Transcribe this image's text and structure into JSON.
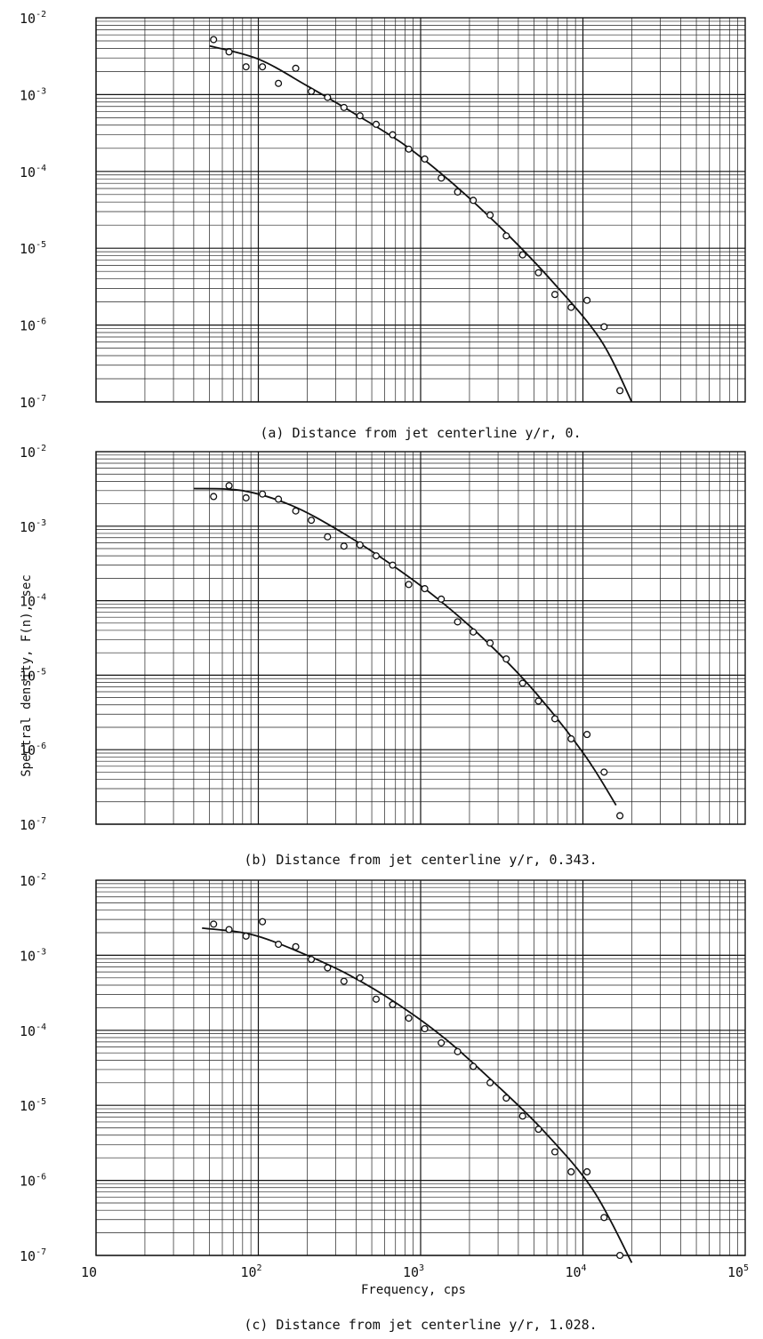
{
  "chart_data": [
    {
      "type": "scatter",
      "panel": "a",
      "caption": "(a) Distance from jet centerline  y/r, 0.",
      "x_scale": "log",
      "y_scale": "log",
      "xlim": [
        10,
        100000
      ],
      "ylim": [
        1e-07,
        0.01
      ],
      "grid": true,
      "points": {
        "x": [
          53,
          66,
          84,
          106,
          133,
          170,
          212,
          267,
          337,
          423,
          532,
          672,
          845,
          1060,
          1340,
          1690,
          2110,
          2680,
          3370,
          4250,
          5320,
          6720,
          8460,
          10600,
          13500,
          16900
        ],
        "y": [
          0.0052,
          0.0036,
          0.0023,
          0.0023,
          0.0014,
          0.0022,
          0.0011,
          0.00092,
          0.00068,
          0.00053,
          0.00041,
          0.0003,
          0.000195,
          0.000145,
          8.2e-05,
          5.4e-05,
          4.2e-05,
          2.7e-05,
          1.45e-05,
          8.2e-06,
          4.8e-06,
          2.5e-06,
          1.7e-06,
          2.1e-06,
          9.5e-07,
          1.4e-07
        ]
      },
      "fit_curve": {
        "x": [
          50,
          100,
          200,
          400,
          800,
          1600,
          3200,
          6400,
          12800,
          20000
        ],
        "y": [
          0.0043,
          0.0029,
          0.0013,
          0.00055,
          0.00022,
          6.8e-05,
          1.75e-05,
          3.8e-06,
          6.5e-07,
          1e-07
        ]
      }
    },
    {
      "type": "scatter",
      "panel": "b",
      "caption": "(b) Distance from jet centerline  y/r, 0.343.",
      "x_scale": "log",
      "y_scale": "log",
      "xlim": [
        10,
        100000
      ],
      "ylim": [
        1e-07,
        0.01
      ],
      "grid": true,
      "points": {
        "x": [
          53,
          66,
          84,
          106,
          133,
          170,
          212,
          267,
          337,
          423,
          532,
          672,
          845,
          1060,
          1340,
          1690,
          2110,
          2680,
          3370,
          4250,
          5320,
          6720,
          8460,
          10600,
          13500,
          16900
        ],
        "y": [
          0.0025,
          0.0035,
          0.0024,
          0.0027,
          0.0023,
          0.0016,
          0.0012,
          0.00072,
          0.00054,
          0.00056,
          0.0004,
          0.0003,
          0.000165,
          0.000145,
          0.000105,
          5.2e-05,
          3.8e-05,
          2.7e-05,
          1.65e-05,
          7.8e-06,
          4.5e-06,
          2.6e-06,
          1.4e-06,
          1.6e-06,
          5e-07,
          1.3e-07
        ]
      },
      "fit_curve": {
        "x": [
          40,
          80,
          160,
          320,
          640,
          1280,
          2560,
          5120,
          10240,
          16000
        ],
        "y": [
          0.0032,
          0.003,
          0.0019,
          0.00085,
          0.00032,
          0.000105,
          2.8e-05,
          5.8e-06,
          8.5e-07,
          1.8e-07
        ]
      }
    },
    {
      "type": "scatter",
      "panel": "c",
      "caption": "(c) Distance from jet centerline  y/r, 1.028.",
      "x_scale": "log",
      "y_scale": "log",
      "xlim": [
        10,
        100000
      ],
      "ylim": [
        1e-07,
        0.01
      ],
      "xlabel": "Frequency, cps",
      "grid": true,
      "points": {
        "x": [
          53,
          66,
          84,
          106,
          133,
          170,
          212,
          267,
          337,
          423,
          532,
          672,
          845,
          1060,
          1340,
          1690,
          2110,
          2680,
          3370,
          4250,
          5320,
          6720,
          8460,
          10600,
          13500,
          16900
        ],
        "y": [
          0.0026,
          0.0022,
          0.0018,
          0.0028,
          0.0014,
          0.0013,
          0.00088,
          0.00068,
          0.00045,
          0.0005,
          0.00026,
          0.00022,
          0.000145,
          0.000105,
          6.8e-05,
          5.2e-05,
          3.3e-05,
          2e-05,
          1.25e-05,
          7.2e-06,
          4.8e-06,
          2.4e-06,
          1.3e-06,
          1.3e-06,
          3.2e-07,
          1e-07
        ]
      },
      "fit_curve": {
        "x": [
          45,
          90,
          180,
          360,
          720,
          1440,
          2880,
          5760,
          11520,
          20000
        ],
        "y": [
          0.0023,
          0.0019,
          0.0011,
          0.00055,
          0.000225,
          7.5e-05,
          1.95e-05,
          4.5e-06,
          7.5e-07,
          8e-08
        ]
      }
    }
  ],
  "ylabel": "Spectral density, F(n), sec",
  "y_ticks": [
    {
      "base": "10",
      "exp": "-2",
      "value": 0.01
    },
    {
      "base": "10",
      "exp": "-3",
      "value": 0.001
    },
    {
      "base": "10",
      "exp": "-4",
      "value": 0.0001
    },
    {
      "base": "10",
      "exp": "-5",
      "value": 1e-05
    },
    {
      "base": "10",
      "exp": "-6",
      "value": 1e-06
    },
    {
      "base": "10",
      "exp": "-7",
      "value": 1e-07
    }
  ],
  "x_ticks": [
    {
      "base": "10",
      "exp": "",
      "value": 10
    },
    {
      "base": "10",
      "exp": "2",
      "value": 100
    },
    {
      "base": "10",
      "exp": "3",
      "value": 1000
    },
    {
      "base": "10",
      "exp": "4",
      "value": 10000
    },
    {
      "base": "10",
      "exp": "5",
      "value": 100000
    }
  ]
}
